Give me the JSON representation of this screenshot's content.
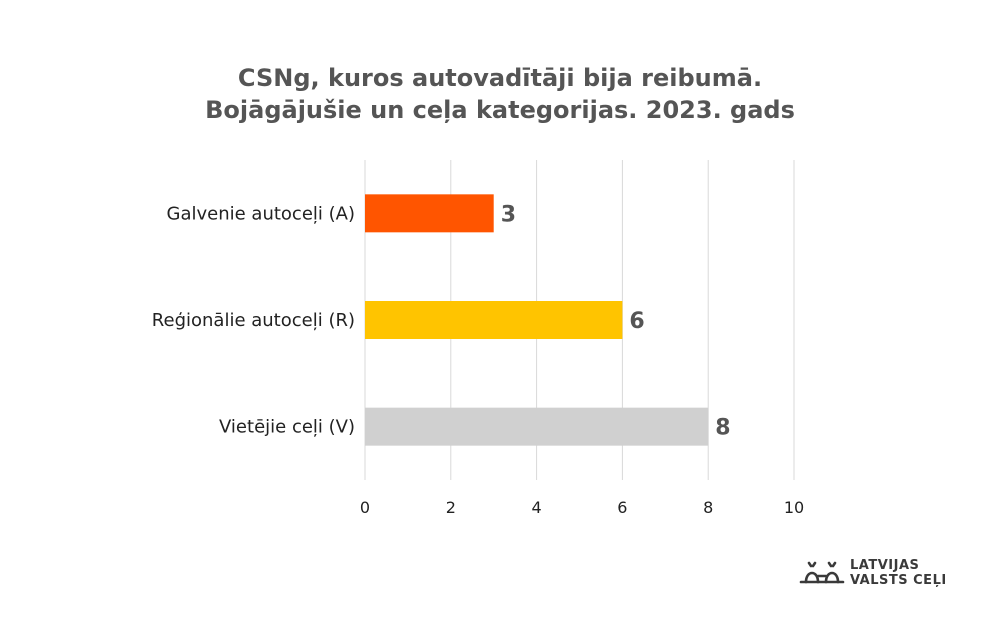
{
  "chart_data": {
    "type": "bar",
    "orientation": "horizontal",
    "title_lines": [
      "CSNg, kuros autovadītāji bija reibumā.",
      "Bojāgājušie un ceļa kategorijas. 2023. gads"
    ],
    "categories": [
      "Galvenie autoceļi (A)",
      "Reģionālie autoceļi (R)",
      "Vietējie ceļi (V)"
    ],
    "values": [
      3,
      6,
      8
    ],
    "colors": [
      "#FF5500",
      "#FFC400",
      "#D0D0D0"
    ],
    "xlim": [
      0,
      10
    ],
    "xticks": [
      "0",
      "2",
      "4",
      "6",
      "8",
      "10"
    ],
    "grid": true,
    "legend": "none"
  },
  "logo": {
    "line1": "LATVIJAS",
    "line2": "VALSTS CEĻI"
  }
}
